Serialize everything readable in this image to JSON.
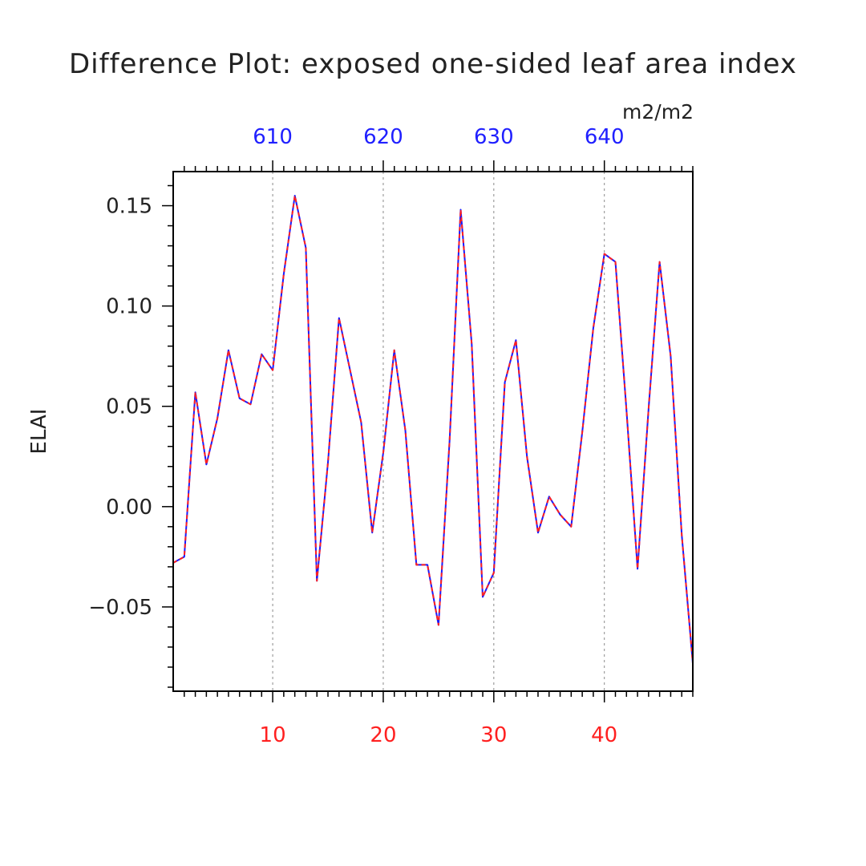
{
  "chart_data": {
    "type": "line",
    "title": "Difference Plot: exposed one-sided leaf area index",
    "units": "m2/m2",
    "ylabel": "ELAI",
    "xlabel": "",
    "xlim": [
      1,
      48
    ],
    "ylim": [
      -0.092,
      0.167
    ],
    "x_ticks_bottom": [
      10,
      20,
      30,
      40
    ],
    "x_ticks_top": [
      {
        "at": 10,
        "label": "610"
      },
      {
        "at": 20,
        "label": "620"
      },
      {
        "at": 30,
        "label": "630"
      },
      {
        "at": 40,
        "label": "640"
      }
    ],
    "y_ticks": [
      {
        "value": 0.15,
        "label": "0.15"
      },
      {
        "value": 0.1,
        "label": "0.10"
      },
      {
        "value": 0.05,
        "label": "0.05"
      },
      {
        "value": 0.0,
        "label": "0.00"
      },
      {
        "value": -0.05,
        "label": "−0.05"
      }
    ],
    "grid_x": true,
    "series": [
      {
        "color": "#1a1aff",
        "dash": "solid",
        "x": [
          1,
          2,
          3,
          4,
          5,
          6,
          7,
          8,
          9,
          10,
          11,
          12,
          13,
          14,
          15,
          16,
          17,
          18,
          19,
          20,
          21,
          22,
          23,
          24,
          25,
          26,
          27,
          28,
          29,
          30,
          31,
          32,
          33,
          34,
          35,
          36,
          37,
          38,
          39,
          40,
          41,
          42,
          43,
          44,
          45,
          46,
          47,
          48
        ],
        "values": [
          -0.028,
          -0.025,
          0.057,
          0.021,
          0.044,
          0.078,
          0.054,
          0.051,
          0.076,
          0.068,
          0.116,
          0.155,
          0.129,
          -0.037,
          0.022,
          0.094,
          0.068,
          0.042,
          -0.013,
          0.027,
          0.078,
          0.038,
          -0.029,
          -0.029,
          -0.059,
          0.033,
          0.148,
          0.081,
          -0.045,
          -0.033,
          0.062,
          0.083,
          0.025,
          -0.013,
          0.005,
          -0.004,
          -0.01,
          0.037,
          0.089,
          0.126,
          0.122,
          0.048,
          -0.031,
          0.049,
          0.122,
          0.075,
          -0.014,
          -0.078
        ]
      },
      {
        "color": "#ff2020",
        "dash": "dashed",
        "x": [
          1,
          2,
          3,
          4,
          5,
          6,
          7,
          8,
          9,
          10,
          11,
          12,
          13,
          14,
          15,
          16,
          17,
          18,
          19,
          20,
          21,
          22,
          23,
          24,
          25,
          26,
          27,
          28,
          29,
          30,
          31,
          32,
          33,
          34,
          35,
          36,
          37,
          38,
          39,
          40,
          41,
          42,
          43,
          44,
          45,
          46,
          47,
          48
        ],
        "values": [
          -0.028,
          -0.025,
          0.057,
          0.021,
          0.044,
          0.078,
          0.054,
          0.051,
          0.076,
          0.068,
          0.116,
          0.155,
          0.129,
          -0.037,
          0.022,
          0.094,
          0.068,
          0.042,
          -0.013,
          0.027,
          0.078,
          0.038,
          -0.029,
          -0.029,
          -0.059,
          0.033,
          0.148,
          0.081,
          -0.045,
          -0.033,
          0.062,
          0.083,
          0.025,
          -0.013,
          0.005,
          -0.004,
          -0.01,
          0.037,
          0.089,
          0.126,
          0.122,
          0.048,
          -0.031,
          0.049,
          0.122,
          0.075,
          -0.014,
          -0.078
        ]
      }
    ]
  }
}
